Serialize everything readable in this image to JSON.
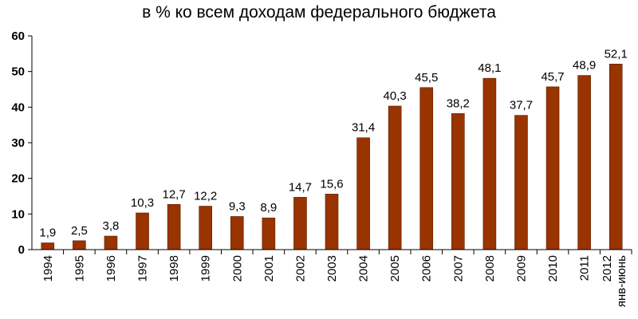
{
  "chart_data": {
    "type": "bar",
    "title": "в % ко всем доходам федерального бюджета",
    "categories": [
      "1994",
      "1995",
      "1996",
      "1997",
      "1998",
      "1999",
      "2000",
      "2001",
      "2002",
      "2003",
      "2004",
      "2005",
      "2006",
      "2007",
      "2008",
      "2009",
      "2010",
      "2011",
      "2012"
    ],
    "category_sublabels": {
      "2012": "янв-июнь"
    },
    "values": [
      1.9,
      2.5,
      3.8,
      10.3,
      12.7,
      12.2,
      9.3,
      8.9,
      14.7,
      15.6,
      31.4,
      40.3,
      45.5,
      38.2,
      48.1,
      37.7,
      45.7,
      48.9,
      52.1
    ],
    "value_labels": [
      "1,9",
      "2,5",
      "3,8",
      "10,3",
      "12,7",
      "12,2",
      "9,3",
      "8,9",
      "14,7",
      "15,6",
      "31,4",
      "40,3",
      "45,5",
      "38,2",
      "48,1",
      "37,7",
      "45,7",
      "48,9",
      "52,1"
    ],
    "yticks": [
      0,
      10,
      20,
      30,
      40,
      50,
      60
    ],
    "ylim": [
      0,
      60
    ],
    "xlabel": "",
    "ylabel": "",
    "grid": false,
    "bar_color": "#993300"
  }
}
